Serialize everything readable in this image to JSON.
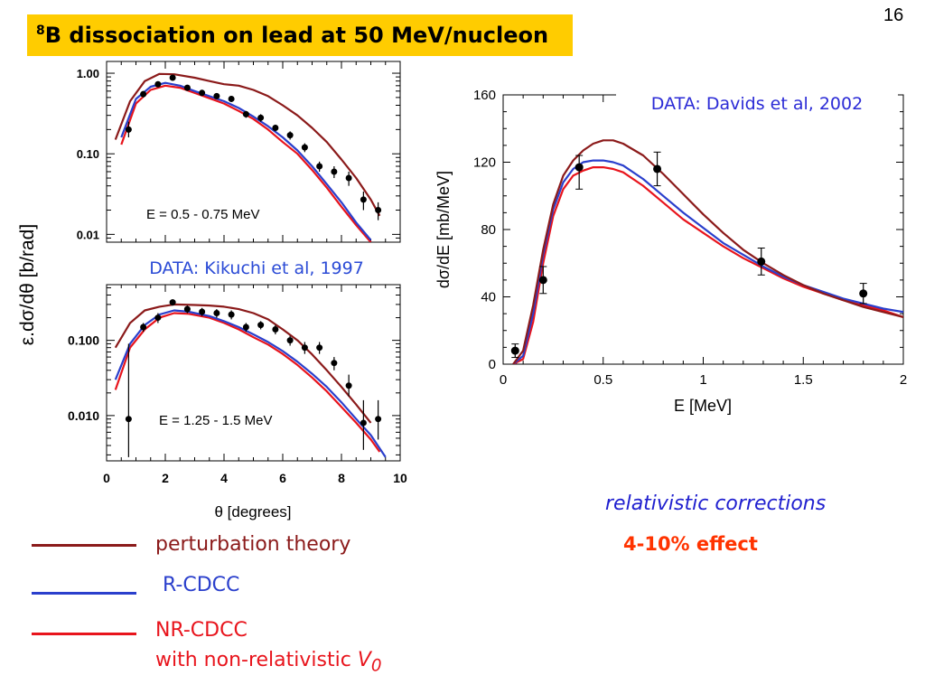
{
  "slide": {
    "title_sup": "8",
    "title_main": "B dissociation on lead at 50 MeV/nucleon",
    "page_number": "16"
  },
  "colors": {
    "title_bg": "#ffcc00",
    "perturbation": "#8b1a1a",
    "r_cdcc": "#2a3fcc",
    "nr_cdcc": "#e8141c",
    "data_label_kikuchi": "#2b4bd6",
    "data_label_davids": "#2b2bd6",
    "note_blue": "#1f1fcf",
    "note_red": "#ff3300"
  },
  "legend": [
    {
      "label": "perturbation theory",
      "color_key": "perturbation"
    },
    {
      "label": "R-CDCC",
      "color_key": "r_cdcc"
    },
    {
      "label": "NR-CDCC",
      "color_key": "nr_cdcc",
      "sublabel_prefix": "with non-relativistic ",
      "sublabel_var": "V",
      "sublabel_sub": "0"
    }
  ],
  "notes": {
    "relativistic": "relativistic corrections",
    "effect": "4-10% effect"
  },
  "chart_data": [
    {
      "id": "angular-top",
      "type": "line",
      "annotation": "E = 0.5 - 0.75 MeV",
      "data_source": "DATA: Kikuchi et al, 1997",
      "ylabel": "ε.dσ/dθ  [b/rad]",
      "yscale": "log",
      "xlim": [
        0,
        10
      ],
      "ylim": [
        0.008,
        1.4
      ],
      "yticks": [
        1.0,
        0.1,
        0.01
      ],
      "ytick_labels": [
        "1.00",
        "0.10",
        "0.01"
      ],
      "series": [
        {
          "name": "perturbation theory",
          "color_key": "perturbation",
          "x": [
            0.3,
            0.8,
            1.3,
            1.8,
            2.3,
            3.0,
            3.5,
            4.0,
            4.5,
            5.0,
            5.5,
            6.0,
            6.5,
            7.0,
            7.5,
            8.0,
            8.5,
            9.0,
            9.3
          ],
          "y": [
            0.15,
            0.45,
            0.8,
            0.98,
            0.97,
            0.88,
            0.8,
            0.73,
            0.7,
            0.62,
            0.52,
            0.4,
            0.3,
            0.21,
            0.14,
            0.085,
            0.05,
            0.027,
            0.017
          ]
        },
        {
          "name": "R-CDCC",
          "color_key": "r_cdcc",
          "x": [
            0.5,
            1.0,
            1.5,
            2.0,
            2.5,
            3.0,
            3.5,
            4.0,
            4.5,
            5.0,
            5.5,
            6.0,
            6.5,
            7.0,
            7.5,
            8.0,
            8.5,
            9.0
          ],
          "y": [
            0.16,
            0.48,
            0.68,
            0.76,
            0.7,
            0.6,
            0.52,
            0.45,
            0.37,
            0.29,
            0.22,
            0.16,
            0.11,
            0.07,
            0.042,
            0.025,
            0.014,
            0.0085
          ]
        },
        {
          "name": "NR-CDCC",
          "color_key": "nr_cdcc",
          "x": [
            0.5,
            1.0,
            1.5,
            2.0,
            2.5,
            3.0,
            3.5,
            4.0,
            4.5,
            5.0,
            5.5,
            6.0,
            6.5,
            7.0,
            7.5,
            8.0,
            8.5,
            9.0
          ],
          "y": [
            0.13,
            0.42,
            0.62,
            0.7,
            0.66,
            0.57,
            0.49,
            0.42,
            0.34,
            0.27,
            0.2,
            0.14,
            0.1,
            0.063,
            0.038,
            0.022,
            0.013,
            0.008
          ]
        }
      ],
      "points": {
        "x": [
          0.75,
          1.25,
          1.75,
          2.25,
          2.75,
          3.25,
          3.75,
          4.25,
          4.75,
          5.25,
          5.75,
          6.25,
          6.75,
          7.25,
          7.75,
          8.25,
          8.75,
          9.25
        ],
        "y": [
          0.2,
          0.55,
          0.73,
          0.88,
          0.66,
          0.57,
          0.52,
          0.48,
          0.31,
          0.28,
          0.21,
          0.17,
          0.12,
          0.07,
          0.06,
          0.05,
          0.027,
          0.02
        ],
        "err_lo": [
          0.16,
          0.5,
          0.68,
          0.82,
          0.62,
          0.53,
          0.48,
          0.44,
          0.28,
          0.25,
          0.19,
          0.15,
          0.105,
          0.06,
          0.05,
          0.04,
          0.02,
          0.015
        ],
        "err_hi": [
          0.25,
          0.6,
          0.78,
          0.94,
          0.7,
          0.61,
          0.56,
          0.52,
          0.34,
          0.31,
          0.23,
          0.19,
          0.135,
          0.08,
          0.07,
          0.06,
          0.034,
          0.025
        ]
      }
    },
    {
      "id": "angular-bottom",
      "type": "line",
      "annotation": "E = 1.25 - 1.5 MeV",
      "xlabel": "θ  [degrees]",
      "yscale": "log",
      "xlim": [
        0,
        10
      ],
      "xticks": [
        0,
        2,
        4,
        6,
        8,
        10
      ],
      "ylim": [
        0.0025,
        0.55
      ],
      "yticks": [
        0.1,
        0.01
      ],
      "ytick_labels": [
        "0.100",
        "0.010"
      ],
      "series": [
        {
          "name": "perturbation theory",
          "color_key": "perturbation",
          "x": [
            0.3,
            0.8,
            1.3,
            1.8,
            2.3,
            3.0,
            3.5,
            4.0,
            4.5,
            5.0,
            5.5,
            6.0,
            6.5,
            7.0,
            7.5,
            8.0,
            8.5,
            9.0
          ],
          "y": [
            0.08,
            0.17,
            0.25,
            0.28,
            0.3,
            0.295,
            0.29,
            0.28,
            0.26,
            0.23,
            0.19,
            0.14,
            0.1,
            0.065,
            0.04,
            0.024,
            0.014,
            0.008
          ]
        },
        {
          "name": "R-CDCC",
          "color_key": "r_cdcc",
          "x": [
            0.3,
            0.8,
            1.3,
            1.8,
            2.3,
            2.8,
            3.5,
            4.0,
            4.5,
            5.0,
            5.5,
            6.0,
            6.5,
            7.0,
            7.5,
            8.0,
            8.5,
            9.0,
            9.5
          ],
          "y": [
            0.03,
            0.09,
            0.16,
            0.22,
            0.25,
            0.24,
            0.21,
            0.18,
            0.15,
            0.12,
            0.095,
            0.072,
            0.052,
            0.036,
            0.024,
            0.015,
            0.009,
            0.0055,
            0.0028
          ]
        },
        {
          "name": "NR-CDCC",
          "color_key": "nr_cdcc",
          "x": [
            0.3,
            0.8,
            1.3,
            1.8,
            2.3,
            2.8,
            3.5,
            4.0,
            4.5,
            5.0,
            5.5,
            6.0,
            6.5,
            7.0,
            7.5,
            8.0,
            8.5,
            9.0,
            9.3
          ],
          "y": [
            0.022,
            0.08,
            0.14,
            0.2,
            0.23,
            0.225,
            0.2,
            0.17,
            0.14,
            0.11,
            0.088,
            0.066,
            0.047,
            0.032,
            0.021,
            0.013,
            0.008,
            0.0048,
            0.0033
          ]
        }
      ],
      "points": {
        "x": [
          0.75,
          1.25,
          1.75,
          2.25,
          2.75,
          3.25,
          3.75,
          4.25,
          4.75,
          5.25,
          5.75,
          6.25,
          6.75,
          7.25,
          7.75,
          8.25,
          8.75,
          9.25
        ],
        "y": [
          0.009,
          0.15,
          0.2,
          0.32,
          0.26,
          0.24,
          0.23,
          0.22,
          0.15,
          0.16,
          0.14,
          0.1,
          0.08,
          0.08,
          0.05,
          0.025,
          0.008,
          0.009
        ],
        "err_lo": [
          0.0028,
          0.13,
          0.17,
          0.29,
          0.23,
          0.21,
          0.2,
          0.19,
          0.13,
          0.14,
          0.12,
          0.085,
          0.066,
          0.066,
          0.04,
          0.018,
          0.0035,
          0.0048
        ],
        "err_hi": [
          0.09,
          0.17,
          0.23,
          0.35,
          0.29,
          0.27,
          0.26,
          0.25,
          0.17,
          0.18,
          0.16,
          0.115,
          0.095,
          0.095,
          0.06,
          0.035,
          0.016,
          0.016
        ]
      }
    },
    {
      "id": "energy",
      "type": "line",
      "data_source": "DATA: Davids et al, 2002",
      "xlabel": "E   [MeV]",
      "ylabel": "dσ/dE   [mb/MeV]",
      "xlim": [
        0,
        2
      ],
      "ylim": [
        0,
        160
      ],
      "xticks": [
        0,
        0.5,
        1,
        1.5,
        2
      ],
      "xtick_labels": [
        "0",
        "0.5",
        "1",
        "1.5",
        "2"
      ],
      "yticks": [
        0,
        40,
        80,
        120,
        160
      ],
      "series": [
        {
          "name": "perturbation theory",
          "color_key": "perturbation",
          "x": [
            0.05,
            0.1,
            0.15,
            0.2,
            0.25,
            0.3,
            0.35,
            0.4,
            0.45,
            0.5,
            0.55,
            0.6,
            0.7,
            0.8,
            0.9,
            1.0,
            1.1,
            1.2,
            1.3,
            1.4,
            1.5,
            1.6,
            1.7,
            1.8,
            1.9,
            2.0
          ],
          "y": [
            0,
            8,
            35,
            68,
            95,
            112,
            121,
            127,
            131,
            133,
            133,
            131,
            124,
            113,
            101,
            89,
            78,
            68,
            60,
            53,
            47,
            42,
            38,
            34,
            31,
            28
          ]
        },
        {
          "name": "R-CDCC",
          "color_key": "r_cdcc",
          "x": [
            0.05,
            0.1,
            0.15,
            0.2,
            0.25,
            0.3,
            0.35,
            0.4,
            0.45,
            0.5,
            0.55,
            0.6,
            0.7,
            0.8,
            0.9,
            1.0,
            1.1,
            1.2,
            1.3,
            1.4,
            1.5,
            1.6,
            1.7,
            1.8,
            1.9,
            2.0
          ],
          "y": [
            0,
            5,
            30,
            65,
            92,
            108,
            116,
            120,
            121,
            121,
            120,
            118,
            110,
            100,
            90,
            81,
            72,
            65,
            58,
            52,
            47,
            43,
            39,
            36,
            33,
            31
          ]
        },
        {
          "name": "NR-CDCC",
          "color_key": "nr_cdcc",
          "x": [
            0.05,
            0.1,
            0.15,
            0.2,
            0.25,
            0.3,
            0.35,
            0.4,
            0.45,
            0.5,
            0.55,
            0.6,
            0.7,
            0.8,
            0.9,
            1.0,
            1.1,
            1.2,
            1.3,
            1.4,
            1.5,
            1.6,
            1.7,
            1.8,
            1.9,
            2.0
          ],
          "y": [
            0,
            3,
            25,
            60,
            88,
            104,
            112,
            115,
            117,
            117,
            116,
            114,
            106,
            96,
            86,
            78,
            70,
            63,
            57,
            51,
            46,
            42,
            38,
            35,
            32,
            28
          ]
        }
      ],
      "points": {
        "x": [
          0.06,
          0.2,
          0.38,
          0.77,
          1.29,
          1.8
        ],
        "y": [
          8,
          50,
          117,
          116,
          61,
          42
        ],
        "err_lo": [
          4,
          42,
          104,
          106,
          53,
          36
        ],
        "err_hi": [
          12,
          58,
          124,
          126,
          69,
          48
        ]
      }
    }
  ]
}
